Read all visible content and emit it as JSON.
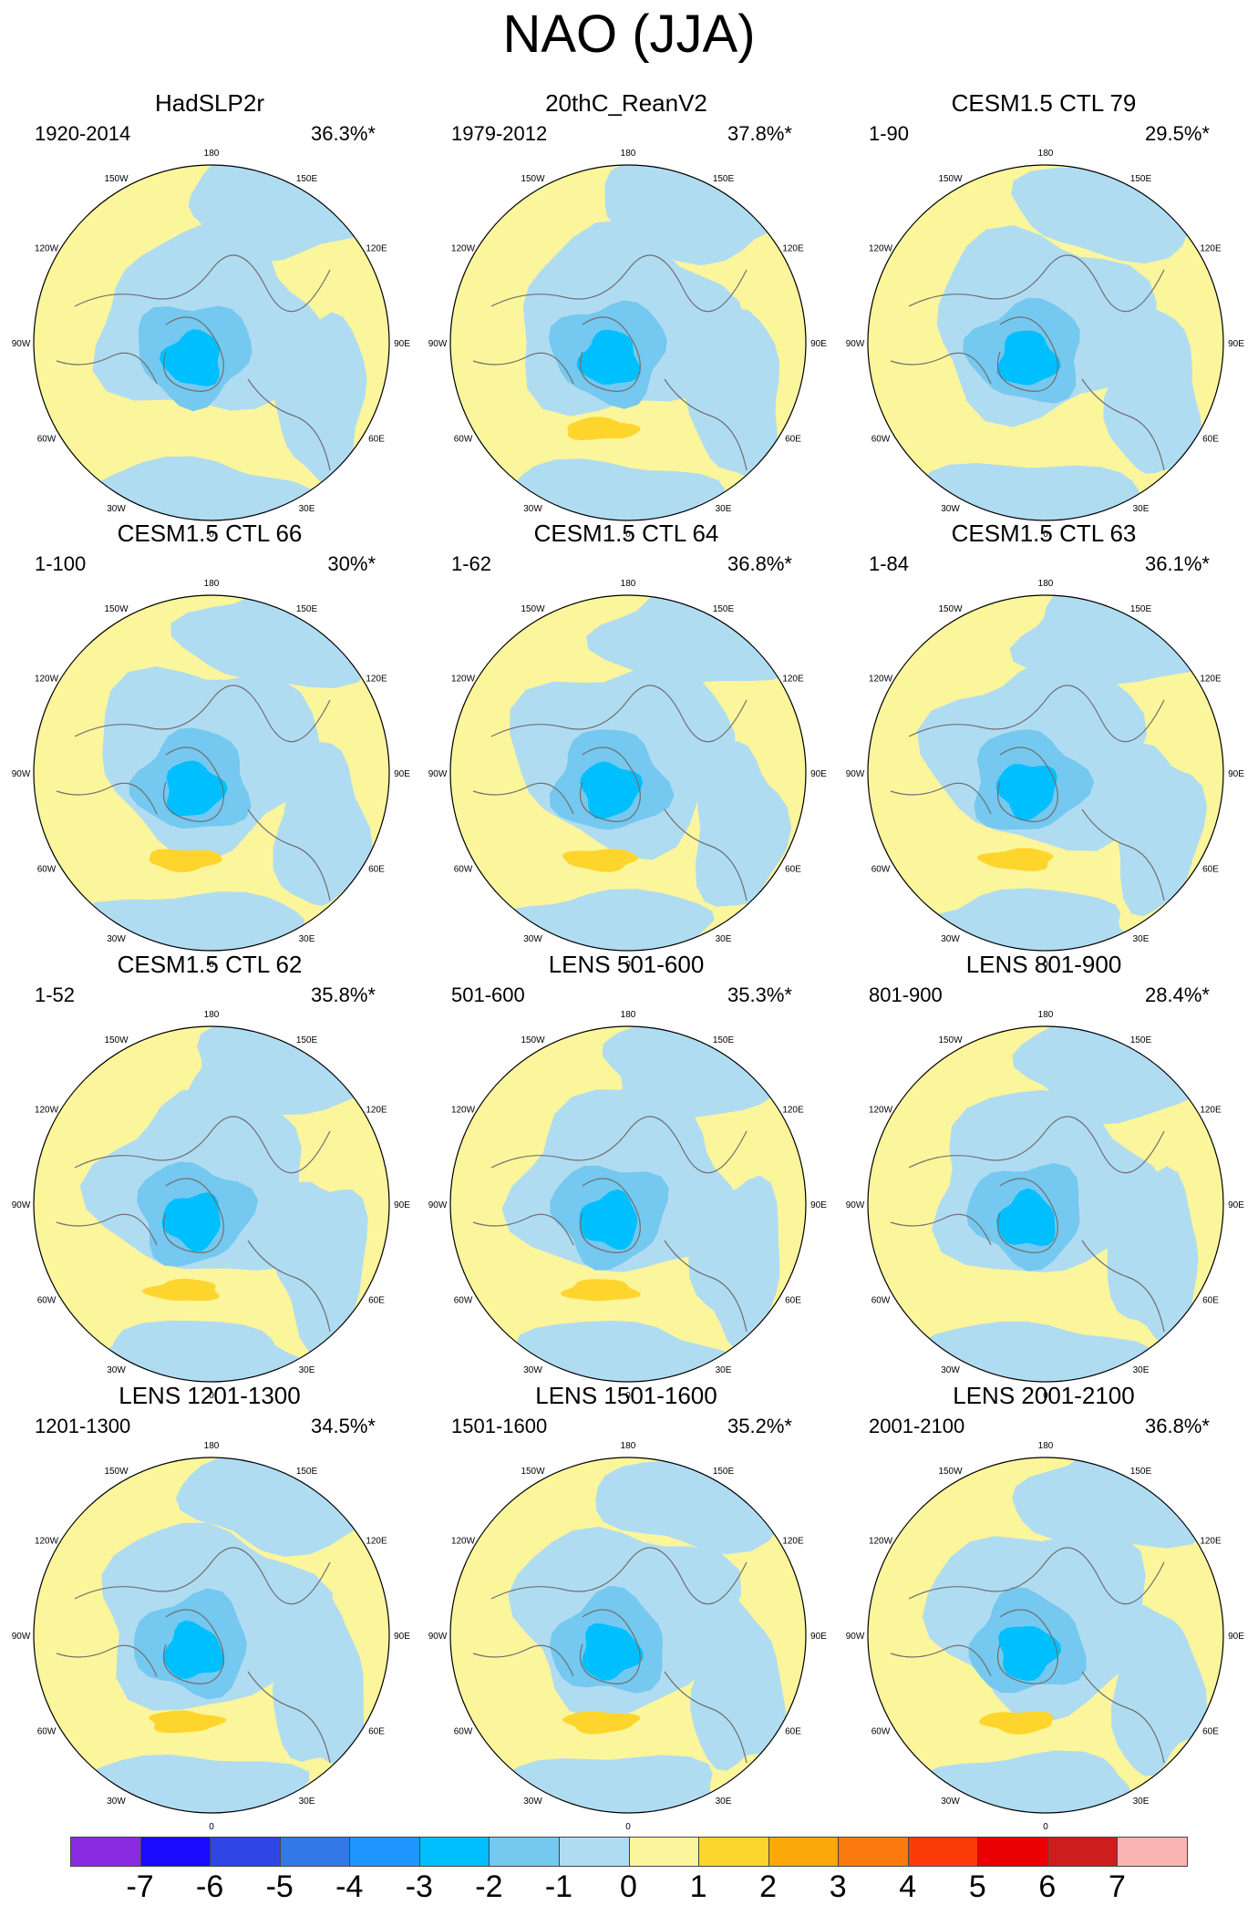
{
  "title": "NAO (JJA)",
  "lon_labels": [
    "180",
    "150E",
    "120E",
    "90E",
    "60E",
    "30E",
    "0",
    "30W",
    "60W",
    "90W",
    "120W",
    "150W"
  ],
  "panels": [
    {
      "title": "HadSLP2r",
      "period": "1920-2014",
      "variance": "36.3%*"
    },
    {
      "title": "20thC_ReanV2",
      "period": "1979-2012",
      "variance": "37.8%*"
    },
    {
      "title": "CESM1.5 CTL 79",
      "period": "1-90",
      "variance": "29.5%*"
    },
    {
      "title": "CESM1.5 CTL 66",
      "period": "1-100",
      "variance": "30%*"
    },
    {
      "title": "CESM1.5 CTL 64",
      "period": "1-62",
      "variance": "36.8%*"
    },
    {
      "title": "CESM1.5 CTL 63",
      "period": "1-84",
      "variance": "36.1%*"
    },
    {
      "title": "CESM1.5 CTL 62",
      "period": "1-52",
      "variance": "35.8%*"
    },
    {
      "title": "LENS 501-600",
      "period": "501-600",
      "variance": "35.3%*"
    },
    {
      "title": "LENS 801-900",
      "period": "801-900",
      "variance": "28.4%*"
    },
    {
      "title": "LENS 1201-1300",
      "period": "1201-1300",
      "variance": "34.5%*"
    },
    {
      "title": "LENS 1501-1600",
      "period": "1501-1600",
      "variance": "35.2%*"
    },
    {
      "title": "LENS 2001-2100",
      "period": "2001-2100",
      "variance": "36.8%*"
    }
  ],
  "colorbar": {
    "labels": [
      "-7",
      "-6",
      "-5",
      "-4",
      "-3",
      "-2",
      "-1",
      "0",
      "1",
      "2",
      "3",
      "4",
      "5",
      "6",
      "7"
    ],
    "colors": [
      "#8a2be2",
      "#1a0aff",
      "#2e46e6",
      "#3478e8",
      "#1e96ff",
      "#00bfff",
      "#75c8ef",
      "#b0dcf2",
      "#fbf59c",
      "#fed52c",
      "#fca80a",
      "#fb7a0e",
      "#fb3a0a",
      "#ea0000",
      "#cd1e1e",
      "#fbb4b4"
    ]
  },
  "map_colors": {
    "level_0_1": "#fbf59c",
    "level_m1_0": "#b0dcf2",
    "level_m2_m1": "#75c8ef",
    "level_m3_m2": "#00bfff",
    "level_1_2": "#fed52c",
    "coastline": "#707070"
  }
}
